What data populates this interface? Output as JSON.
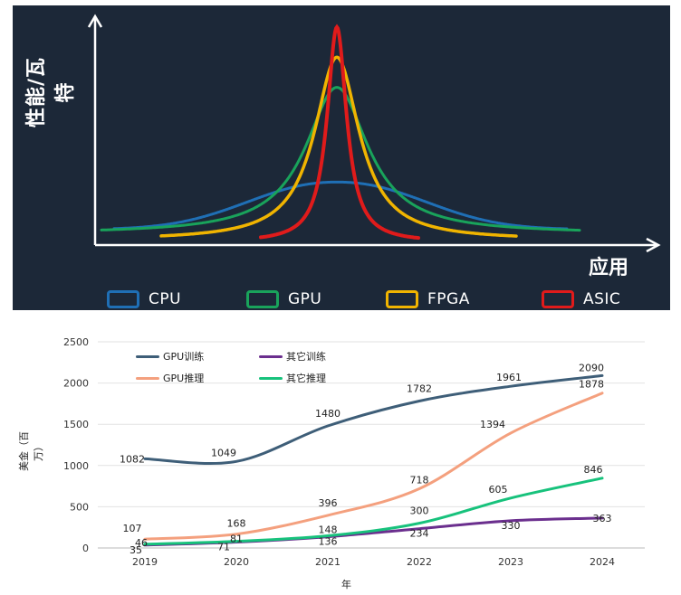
{
  "top_chart": {
    "ylabel": "性能/瓦特",
    "xlabel": "应用",
    "legend": [
      {
        "label": "CPU",
        "color": "#1f6fb5"
      },
      {
        "label": "GPU",
        "color": "#19a35b"
      },
      {
        "label": "FPGA",
        "color": "#f0b400"
      },
      {
        "label": "ASIC",
        "color": "#e01b1b"
      }
    ]
  },
  "chart_data": [
    {
      "type": "line",
      "title": "",
      "xlabel": "应用",
      "ylabel": "性能/瓦特",
      "grid": false,
      "legend_position": "bottom",
      "series": [
        {
          "name": "CPU",
          "color": "#1f6fb5",
          "peak": 0.28,
          "baseline": 0.06,
          "spread": "wide"
        },
        {
          "name": "GPU",
          "color": "#19a35b",
          "peak": 0.72,
          "baseline": 0.04,
          "spread": "medium"
        },
        {
          "name": "FPGA",
          "color": "#f0b400",
          "peak": 0.86,
          "baseline": 0.01,
          "spread": "narrow"
        },
        {
          "name": "ASIC",
          "color": "#e01b1b",
          "peak": 1.0,
          "baseline": 0.0,
          "spread": "very narrow"
        }
      ]
    },
    {
      "type": "line",
      "title": "",
      "xlabel": "年",
      "ylabel": "美金（百万）",
      "ylim": [
        0,
        2500
      ],
      "yticks": [
        0,
        500,
        1000,
        1500,
        2000,
        2500
      ],
      "grid": true,
      "legend_position": "top-left",
      "categories": [
        "2019",
        "2020",
        "2021",
        "2022",
        "2023",
        "2024"
      ],
      "series": [
        {
          "name": "GPU训练",
          "color": "#3e5e78",
          "values": [
            1082,
            1049,
            1480,
            1782,
            1961,
            2090
          ]
        },
        {
          "name": "其它训练",
          "color": "#6b2f8e",
          "values": [
            35,
            71,
            136,
            234,
            330,
            363
          ]
        },
        {
          "name": "GPU推理",
          "color": "#f4a07e",
          "values": [
            107,
            168,
            396,
            718,
            1394,
            1878
          ]
        },
        {
          "name": "其它推理",
          "color": "#17c27c",
          "values": [
            46,
            81,
            148,
            300,
            605,
            846
          ]
        }
      ]
    }
  ]
}
